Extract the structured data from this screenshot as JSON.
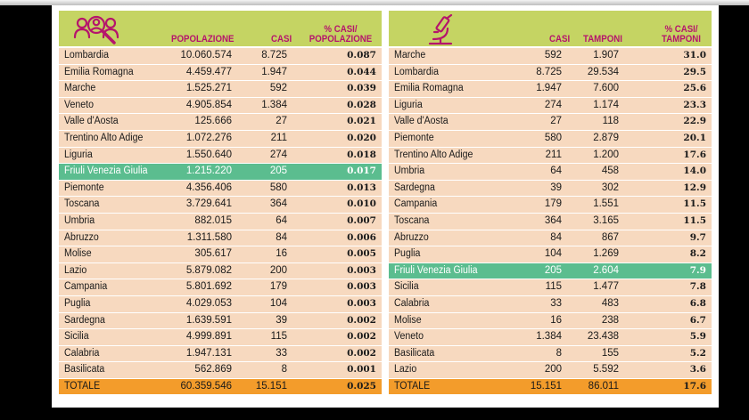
{
  "left": {
    "headers": {
      "pop": "POPOLAZIONE",
      "casi": "CASI",
      "pct_line1": "% CASI/",
      "pct_line2": "POPOLAZIONE"
    },
    "rows": [
      {
        "name": "Lombardia",
        "pop": "10.060.574",
        "casi": "8.725",
        "pct": "0.087"
      },
      {
        "name": "Emilia Romagna",
        "pop": "4.459.477",
        "casi": "1.947",
        "pct": "0.044"
      },
      {
        "name": "Marche",
        "pop": "1.525.271",
        "casi": "592",
        "pct": "0.039"
      },
      {
        "name": "Veneto",
        "pop": "4.905.854",
        "casi": "1.384",
        "pct": "0.028"
      },
      {
        "name": "Valle d'Aosta",
        "pop": "125.666",
        "casi": "27",
        "pct": "0.021"
      },
      {
        "name": "Trentino Alto Adige",
        "pop": "1.072.276",
        "casi": "211",
        "pct": "0.020"
      },
      {
        "name": "Liguria",
        "pop": "1.550.640",
        "casi": "274",
        "pct": "0.018"
      },
      {
        "name": "Friuli Venezia Giulia",
        "pop": "1.215.220",
        "casi": "205",
        "pct": "0.017",
        "highlight": true
      },
      {
        "name": "Piemonte",
        "pop": "4.356.406",
        "casi": "580",
        "pct": "0.013"
      },
      {
        "name": "Toscana",
        "pop": "3.729.641",
        "casi": "364",
        "pct": "0.010"
      },
      {
        "name": "Umbria",
        "pop": "882.015",
        "casi": "64",
        "pct": "0.007"
      },
      {
        "name": "Abruzzo",
        "pop": "1.311.580",
        "casi": "84",
        "pct": "0.006"
      },
      {
        "name": "Molise",
        "pop": "305.617",
        "casi": "16",
        "pct": "0.005"
      },
      {
        "name": "Lazio",
        "pop": "5.879.082",
        "casi": "200",
        "pct": "0.003"
      },
      {
        "name": "Campania",
        "pop": "5.801.692",
        "casi": "179",
        "pct": "0.003"
      },
      {
        "name": "Puglia",
        "pop": "4.029.053",
        "casi": "104",
        "pct": "0.003"
      },
      {
        "name": "Sardegna",
        "pop": "1.639.591",
        "casi": "39",
        "pct": "0.002"
      },
      {
        "name": "Sicilia",
        "pop": "4.999.891",
        "casi": "115",
        "pct": "0.002"
      },
      {
        "name": "Calabria",
        "pop": "1.947.131",
        "casi": "33",
        "pct": "0.002"
      },
      {
        "name": "Basilicata",
        "pop": "562.869",
        "casi": "8",
        "pct": "0.001"
      }
    ],
    "total": {
      "name": "TOTALE",
      "pop": "60.359.546",
      "casi": "15.151",
      "pct": "0.025"
    }
  },
  "right": {
    "headers": {
      "casi": "CASI",
      "tamponi": "TAMPONI",
      "pct_line1": "% CASI/",
      "pct_line2": "TAMPONI"
    },
    "rows": [
      {
        "name": "Marche",
        "casi": "592",
        "tamponi": "1.907",
        "pct": "31.0"
      },
      {
        "name": "Lombardia",
        "casi": "8.725",
        "tamponi": "29.534",
        "pct": "29.5"
      },
      {
        "name": "Emilia Romagna",
        "casi": "1.947",
        "tamponi": "7.600",
        "pct": "25.6"
      },
      {
        "name": "Liguria",
        "casi": "274",
        "tamponi": "1.174",
        "pct": "23.3"
      },
      {
        "name": "Valle d'Aosta",
        "casi": "27",
        "tamponi": "118",
        "pct": "22.9"
      },
      {
        "name": "Piemonte",
        "casi": "580",
        "tamponi": "2.879",
        "pct": "20.1"
      },
      {
        "name": "Trentino Alto Adige",
        "casi": "211",
        "tamponi": "1.200",
        "pct": "17.6"
      },
      {
        "name": "Umbria",
        "casi": "64",
        "tamponi": "458",
        "pct": "14.0"
      },
      {
        "name": "Sardegna",
        "casi": "39",
        "tamponi": "302",
        "pct": "12.9"
      },
      {
        "name": "Campania",
        "casi": "179",
        "tamponi": "1.551",
        "pct": "11.5"
      },
      {
        "name": "Toscana",
        "casi": "364",
        "tamponi": "3.165",
        "pct": "11.5"
      },
      {
        "name": "Abruzzo",
        "casi": "84",
        "tamponi": "867",
        "pct": "9.7"
      },
      {
        "name": "Puglia",
        "casi": "104",
        "tamponi": "1.269",
        "pct": "8.2"
      },
      {
        "name": "Friuli Venezia Giulia",
        "casi": "205",
        "tamponi": "2.604",
        "pct": "7.9",
        "highlight": true
      },
      {
        "name": "Sicilia",
        "casi": "115",
        "tamponi": "1.477",
        "pct": "7.8"
      },
      {
        "name": "Calabria",
        "casi": "33",
        "tamponi": "483",
        "pct": "6.8"
      },
      {
        "name": "Molise",
        "casi": "16",
        "tamponi": "238",
        "pct": "6.7"
      },
      {
        "name": "Veneto",
        "casi": "1.384",
        "tamponi": "23.438",
        "pct": "5.9"
      },
      {
        "name": "Basilicata",
        "casi": "8",
        "tamponi": "155",
        "pct": "5.2"
      },
      {
        "name": "Lazio",
        "casi": "200",
        "tamponi": "5.592",
        "pct": "3.6"
      }
    ],
    "total": {
      "name": "TOTALE",
      "casi": "15.151",
      "tamponi": "86.011",
      "pct": "17.6"
    }
  },
  "icons": {
    "left": "people-search-icon",
    "right": "microscope-icon"
  },
  "colors": {
    "header": "#c5d463",
    "row": "#f7d9bf",
    "highlight": "#5bbd8f",
    "total": "#f39c2b",
    "header_text": "#b5156c"
  }
}
